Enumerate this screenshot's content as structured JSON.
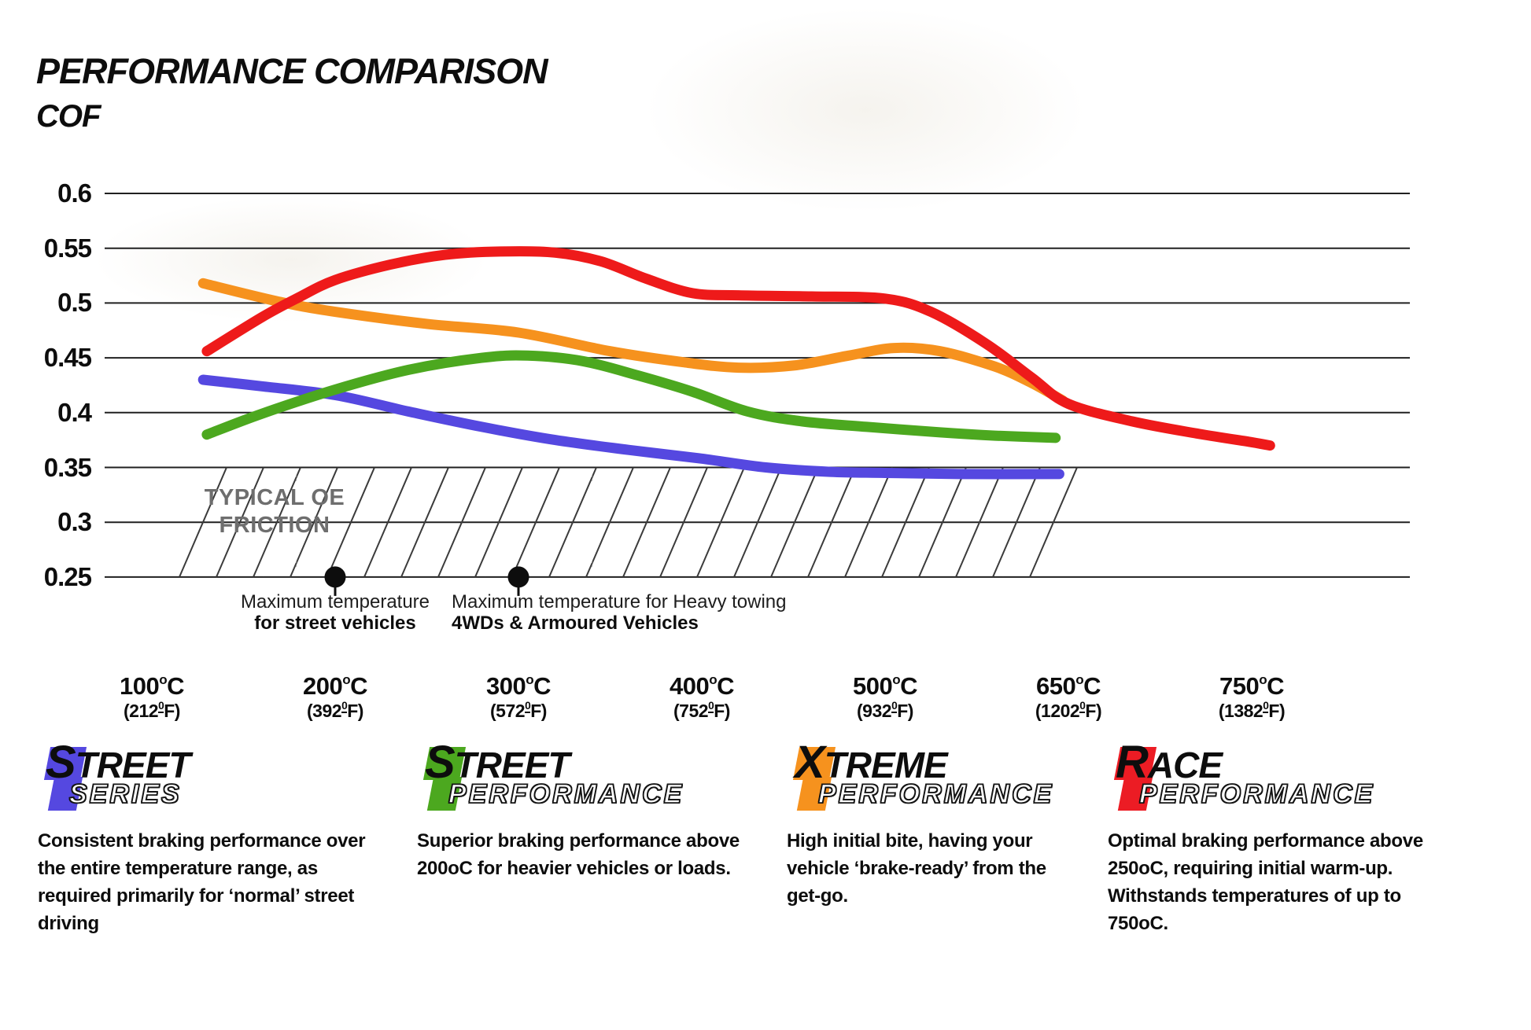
{
  "page_title": "PERFORMANCE COMPARISON",
  "axis": {
    "y_title": "COF",
    "y_ticks": [
      "0.6",
      "0.55",
      "0.5",
      "0.45",
      "0.4",
      "0.35",
      "0.3",
      "0.25"
    ],
    "deg_c_sup": "o",
    "c_unit": "C",
    "deg_f_sup": "0",
    "f_unit": "F",
    "x_ticks": [
      {
        "c": "100",
        "f": "212"
      },
      {
        "c": "200",
        "f": "392"
      },
      {
        "c": "300",
        "f": "572"
      },
      {
        "c": "400",
        "f": "752"
      },
      {
        "c": "500",
        "f": "932"
      },
      {
        "c": "650",
        "f": "1202"
      },
      {
        "c": "750",
        "f": "1382"
      }
    ]
  },
  "chart_data": {
    "type": "line",
    "title": "PERFORMANCE COMPARISON",
    "ylabel": "COF",
    "ylim": [
      0.25,
      0.6
    ],
    "grid": "horizontal",
    "legend_position": "none",
    "x_categories": [
      "100°C",
      "200°C",
      "300°C",
      "400°C",
      "500°C",
      "650°C",
      "750°C"
    ],
    "note": "points are [category-index, COF]; category indices map to x_categories",
    "series": [
      {
        "name": "Street Series",
        "color": "#5548E0",
        "points": [
          [
            0.28,
            0.43
          ],
          [
            0.6,
            0.424
          ],
          [
            1.0,
            0.416
          ],
          [
            1.4,
            0.401
          ],
          [
            1.8,
            0.387
          ],
          [
            2.2,
            0.375
          ],
          [
            2.6,
            0.366
          ],
          [
            3.0,
            0.358
          ],
          [
            3.35,
            0.35
          ],
          [
            3.7,
            0.346
          ],
          [
            4.0,
            0.345
          ],
          [
            4.4,
            0.344
          ],
          [
            4.95,
            0.344
          ]
        ]
      },
      {
        "name": "Street Performance",
        "color": "#4CA81F",
        "points": [
          [
            0.3,
            0.38
          ],
          [
            0.6,
            0.399
          ],
          [
            1.0,
            0.421
          ],
          [
            1.4,
            0.439
          ],
          [
            1.8,
            0.45
          ],
          [
            2.05,
            0.452
          ],
          [
            2.35,
            0.447
          ],
          [
            2.65,
            0.434
          ],
          [
            2.95,
            0.419
          ],
          [
            3.25,
            0.401
          ],
          [
            3.55,
            0.392
          ],
          [
            3.9,
            0.387
          ],
          [
            4.3,
            0.382
          ],
          [
            4.6,
            0.379
          ],
          [
            4.93,
            0.377
          ]
        ]
      },
      {
        "name": "Xtreme Performance",
        "color": "#F6921E",
        "points": [
          [
            0.28,
            0.518
          ],
          [
            0.7,
            0.501
          ],
          [
            1.0,
            0.492
          ],
          [
            1.5,
            0.481
          ],
          [
            2.0,
            0.473
          ],
          [
            2.5,
            0.456
          ],
          [
            2.9,
            0.446
          ],
          [
            3.2,
            0.441
          ],
          [
            3.5,
            0.443
          ],
          [
            3.8,
            0.452
          ],
          [
            4.05,
            0.459
          ],
          [
            4.3,
            0.456
          ],
          [
            4.6,
            0.442
          ],
          [
            4.8,
            0.427
          ],
          [
            4.97,
            0.411
          ]
        ]
      },
      {
        "name": "Race Performance",
        "color": "#EE1A1A",
        "points": [
          [
            0.3,
            0.456
          ],
          [
            0.6,
            0.487
          ],
          [
            0.8,
            0.505
          ],
          [
            1.0,
            0.521
          ],
          [
            1.3,
            0.535
          ],
          [
            1.6,
            0.544
          ],
          [
            1.9,
            0.547
          ],
          [
            2.2,
            0.546
          ],
          [
            2.45,
            0.538
          ],
          [
            2.7,
            0.522
          ],
          [
            2.95,
            0.509
          ],
          [
            3.2,
            0.507
          ],
          [
            3.6,
            0.506
          ],
          [
            4.0,
            0.504
          ],
          [
            4.25,
            0.492
          ],
          [
            4.55,
            0.463
          ],
          [
            4.8,
            0.432
          ],
          [
            5.0,
            0.408
          ],
          [
            5.35,
            0.392
          ],
          [
            5.7,
            0.381
          ],
          [
            6.0,
            0.373
          ],
          [
            6.1,
            0.37
          ]
        ]
      }
    ],
    "oe_region": {
      "value_range": [
        0.25,
        0.35
      ],
      "label_line1": "TYPICAL OE",
      "label_line2": "FRICTION"
    },
    "markers": [
      {
        "x_index": 1,
        "value": 0.25,
        "line1": "Maximum temperature",
        "line2": "for street vehicles"
      },
      {
        "x_index": 2,
        "value": 0.25,
        "line1": "Maximum temperature for Heavy towing",
        "line2": "4WDs & Armoured Vehicles"
      }
    ]
  },
  "legend": [
    {
      "initial": "S",
      "word1_rest": "TREET",
      "word2": "SERIES",
      "color": "#5548E0",
      "description": "Consistent braking performance over the entire temperature range, as required primarily for ‘normal’ street driving"
    },
    {
      "initial": "S",
      "word1_rest": "TREET",
      "word2": "PERFORMANCE",
      "color": "#4CA81F",
      "description": "Superior braking performance above 200oC for heavier vehicles or loads."
    },
    {
      "initial": "X",
      "word1_rest": "TREME",
      "word2": "PERFORMANCE",
      "color": "#F6921E",
      "description": "High initial bite, having your vehicle ‘brake-ready’ from the get-go."
    },
    {
      "initial": "R",
      "word1_rest": "ACE",
      "word2": "PERFORMANCE",
      "color": "#EC1C24",
      "description": "Optimal braking performance above 250oC, requiring initial warm-up. Withstands temperatures of up to 750oC."
    }
  ]
}
